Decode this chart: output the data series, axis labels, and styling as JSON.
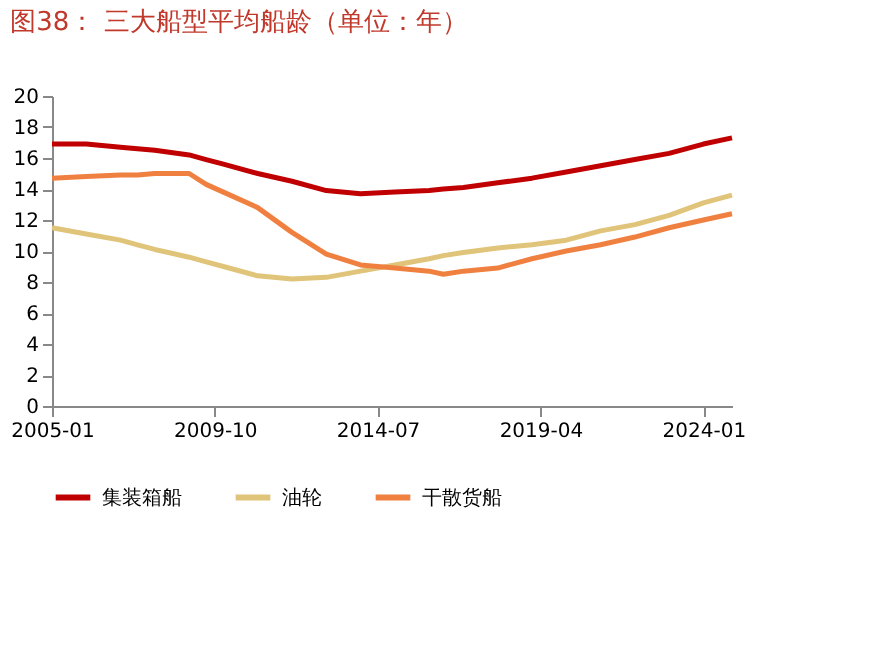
{
  "chart_data": {
    "type": "line",
    "title": "图38：  三大船型平均船龄（单位：年）",
    "x": [
      "2005-01",
      "2006-01",
      "2007-01",
      "2007-07",
      "2008-01",
      "2009-01",
      "2009-07",
      "2010-01",
      "2011-01",
      "2012-01",
      "2013-01",
      "2014-01",
      "2015-01",
      "2016-01",
      "2016-06",
      "2017-01",
      "2018-01",
      "2019-01",
      "2020-01",
      "2021-01",
      "2022-01",
      "2023-01",
      "2024-01",
      "2024-11"
    ],
    "series": [
      {
        "name": "集装箱船",
        "color": "#c00000",
        "values": [
          16.9,
          16.9,
          16.7,
          16.6,
          16.5,
          16.2,
          15.9,
          15.6,
          15.0,
          14.5,
          13.9,
          13.7,
          13.8,
          13.9,
          14.0,
          14.1,
          14.4,
          14.7,
          15.1,
          15.5,
          15.9,
          16.3,
          16.9,
          17.3
        ]
      },
      {
        "name": "油轮",
        "color": "#e0c47a",
        "values": [
          11.5,
          11.1,
          10.7,
          10.4,
          10.1,
          9.6,
          9.3,
          9.0,
          8.4,
          8.2,
          8.3,
          8.7,
          9.1,
          9.5,
          9.7,
          9.9,
          10.2,
          10.4,
          10.7,
          11.3,
          11.7,
          12.3,
          13.1,
          13.6
        ]
      },
      {
        "name": "干散货船",
        "color": "#f08040",
        "values": [
          14.7,
          14.8,
          14.9,
          14.9,
          15.0,
          15.0,
          14.3,
          13.8,
          12.8,
          11.2,
          9.8,
          9.1,
          8.9,
          8.7,
          8.5,
          8.7,
          8.9,
          9.5,
          10.0,
          10.4,
          10.9,
          11.5,
          12.0,
          12.4
        ]
      }
    ],
    "xlim": [
      "2005-01",
      "2024-11"
    ],
    "xticks": [
      "2005-01",
      "2009-10",
      "2014-07",
      "2019-04",
      "2024-01"
    ],
    "ylim": [
      0,
      20
    ],
    "yticks": [
      0,
      2,
      4,
      6,
      8,
      10,
      12,
      14,
      16,
      18,
      20
    ],
    "grid": false,
    "legend": "bottom",
    "line_style": "solid",
    "marker": "none"
  }
}
